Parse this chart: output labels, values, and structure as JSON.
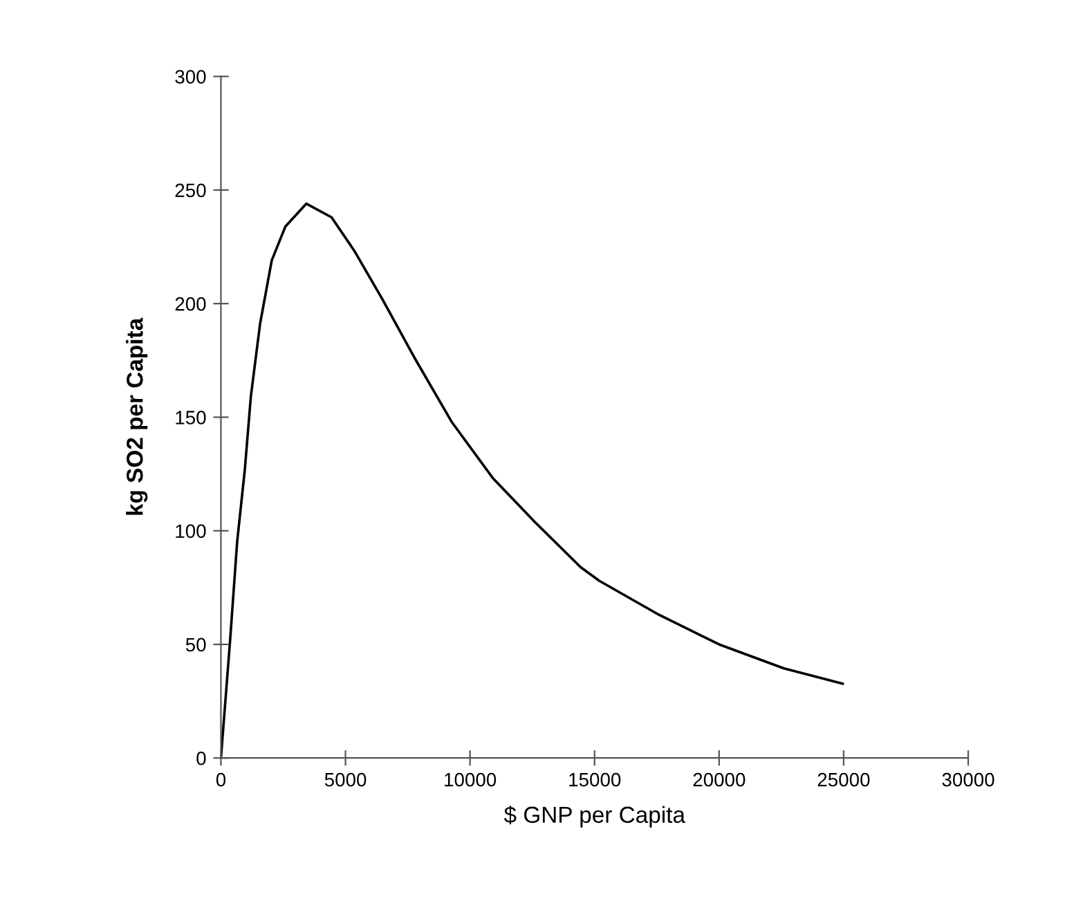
{
  "chart_data": {
    "type": "line",
    "xlabel": "$ GNP per Capita",
    "ylabel": "kg SO2 per Capita",
    "x": [
      0,
      370,
      650,
      960,
      1200,
      1570,
      2040,
      2590,
      3430,
      4440,
      5370,
      6480,
      7780,
      9260,
      10930,
      12590,
      14440,
      15190,
      17590,
      20000,
      22590,
      24960
    ],
    "series": [
      {
        "color": "#000000",
        "values": [
          0,
          52,
          95,
          127,
          159,
          191,
          219,
          234,
          244,
          238,
          223,
          202,
          176,
          148,
          123,
          104,
          84,
          78,
          63,
          50,
          39.5,
          32.7
        ]
      }
    ],
    "xlim": [
      0,
      30000
    ],
    "xticks": [
      0,
      5000,
      10000,
      15000,
      20000,
      25000,
      30000
    ],
    "ylim": [
      0,
      300
    ],
    "yticks": [
      0,
      50,
      100,
      150,
      200,
      250,
      300
    ],
    "grid": false,
    "legend": false,
    "marker": "none",
    "line_style": "solid"
  }
}
